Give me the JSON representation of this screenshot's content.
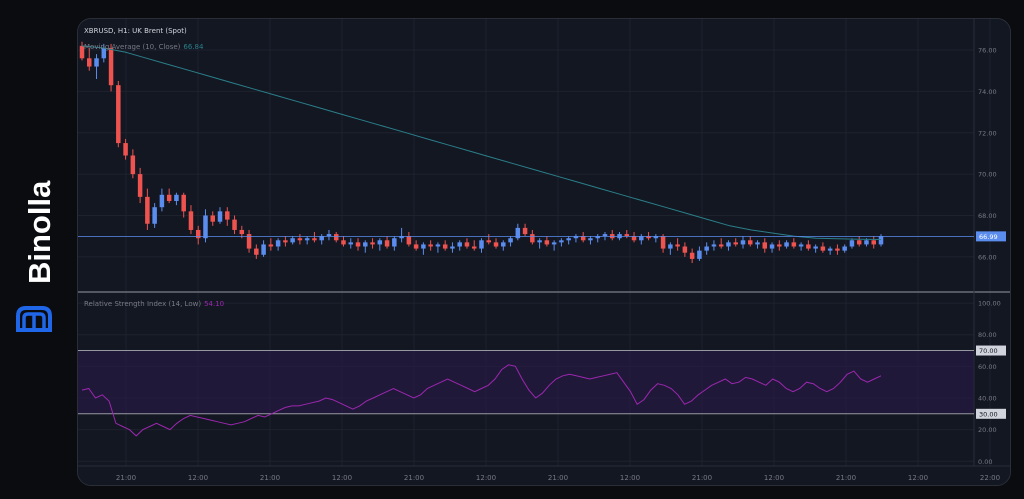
{
  "brand": {
    "name": "Binolla"
  },
  "chart": {
    "title": "XBRUSD, H1: UK Brent (Spot)",
    "ma_label": "Moving Average (10, Close)",
    "ma_value": "66.84",
    "rsi_label": "Relative Strength Index (14, Low)",
    "rsi_value": "54.10"
  },
  "colors": {
    "up": "#5b8def",
    "down": "#ef5350",
    "ma": "#2a7f8a",
    "rsi": "#9c27b0",
    "grid": "#1e222d",
    "axis_text": "#787b86"
  },
  "chart_data": [
    {
      "type": "candlestick",
      "title": "XBRUSD, H1: UK Brent (Spot)",
      "ylim": [
        64.3,
        77.5
      ],
      "y_ticks": [
        "76.00",
        "74.00",
        "72.00",
        "70.00",
        "68.00",
        "66.00"
      ],
      "x_ticks": [
        "21:00",
        "12:00",
        "21:00",
        "12:00",
        "21:00",
        "12:00",
        "21:00",
        "12:00",
        "21:00",
        "12:00",
        "21:00",
        "12:00",
        "22:00"
      ],
      "last_price": "66.99",
      "candles": [
        [
          76.2,
          76.4,
          75.5,
          75.6
        ],
        [
          75.6,
          76.1,
          75.0,
          75.2
        ],
        [
          75.2,
          75.8,
          74.6,
          75.6
        ],
        [
          75.6,
          76.3,
          75.4,
          76.1
        ],
        [
          76.1,
          76.3,
          74.0,
          74.3
        ],
        [
          74.3,
          74.5,
          71.3,
          71.5
        ],
        [
          71.5,
          71.7,
          70.7,
          70.9
        ],
        [
          70.9,
          71.2,
          69.8,
          70.0
        ],
        [
          70.0,
          70.3,
          68.6,
          68.9
        ],
        [
          68.9,
          69.3,
          67.3,
          67.6
        ],
        [
          67.6,
          68.6,
          67.4,
          68.4
        ],
        [
          68.4,
          69.3,
          68.2,
          69.0
        ],
        [
          69.0,
          69.3,
          68.6,
          68.7
        ],
        [
          68.7,
          69.1,
          68.5,
          69.0
        ],
        [
          69.0,
          69.1,
          67.9,
          68.2
        ],
        [
          68.2,
          68.5,
          67.1,
          67.3
        ],
        [
          67.3,
          67.5,
          66.6,
          66.9
        ],
        [
          66.9,
          68.3,
          66.7,
          68.0
        ],
        [
          68.0,
          68.2,
          67.5,
          67.7
        ],
        [
          67.7,
          68.4,
          67.6,
          68.2
        ],
        [
          68.2,
          68.4,
          67.5,
          67.8
        ],
        [
          67.8,
          68.0,
          67.1,
          67.3
        ],
        [
          67.3,
          67.5,
          66.9,
          67.1
        ],
        [
          67.1,
          67.3,
          66.2,
          66.4
        ],
        [
          66.4,
          66.6,
          65.9,
          66.1
        ],
        [
          66.1,
          66.8,
          66.0,
          66.6
        ],
        [
          66.6,
          66.9,
          66.3,
          66.5
        ],
        [
          66.5,
          66.9,
          66.3,
          66.8
        ],
        [
          66.8,
          67.0,
          66.5,
          66.7
        ],
        [
          66.7,
          67.0,
          66.6,
          66.9
        ],
        [
          66.9,
          67.1,
          66.6,
          66.8
        ],
        [
          66.8,
          67.0,
          66.6,
          66.9
        ],
        [
          66.9,
          67.2,
          66.7,
          66.8
        ],
        [
          66.8,
          67.1,
          66.6,
          67.0
        ],
        [
          67.0,
          67.3,
          66.8,
          67.1
        ],
        [
          67.1,
          67.2,
          66.7,
          66.8
        ],
        [
          66.8,
          67.0,
          66.5,
          66.6
        ],
        [
          66.6,
          66.9,
          66.4,
          66.7
        ],
        [
          66.7,
          66.9,
          66.3,
          66.5
        ],
        [
          66.5,
          66.8,
          66.2,
          66.7
        ],
        [
          66.7,
          66.9,
          66.4,
          66.6
        ],
        [
          66.6,
          66.9,
          66.3,
          66.8
        ],
        [
          66.8,
          67.0,
          66.4,
          66.5
        ],
        [
          66.5,
          67.0,
          66.3,
          66.9
        ],
        [
          66.9,
          67.4,
          66.7,
          67.0
        ],
        [
          67.0,
          67.2,
          66.5,
          66.6
        ],
        [
          66.6,
          66.8,
          66.3,
          66.4
        ],
        [
          66.4,
          66.7,
          66.1,
          66.6
        ],
        [
          66.6,
          66.8,
          66.3,
          66.5
        ],
        [
          66.5,
          66.7,
          66.2,
          66.6
        ],
        [
          66.6,
          66.8,
          66.3,
          66.4
        ],
        [
          66.4,
          66.7,
          66.2,
          66.5
        ],
        [
          66.5,
          66.8,
          66.3,
          66.7
        ],
        [
          66.7,
          66.9,
          66.4,
          66.5
        ],
        [
          66.5,
          66.8,
          66.3,
          66.4
        ],
        [
          66.4,
          66.9,
          66.2,
          66.8
        ],
        [
          66.8,
          67.1,
          66.6,
          66.7
        ],
        [
          66.7,
          66.9,
          66.4,
          66.5
        ],
        [
          66.5,
          66.8,
          66.3,
          66.7
        ],
        [
          66.7,
          67.0,
          66.5,
          66.9
        ],
        [
          66.9,
          67.6,
          66.8,
          67.4
        ],
        [
          67.4,
          67.6,
          67.0,
          67.1
        ],
        [
          67.1,
          67.3,
          66.6,
          66.7
        ],
        [
          66.7,
          66.9,
          66.4,
          66.8
        ],
        [
          66.8,
          67.0,
          66.5,
          66.6
        ],
        [
          66.6,
          66.8,
          66.3,
          66.7
        ],
        [
          66.7,
          66.9,
          66.5,
          66.8
        ],
        [
          66.8,
          67.0,
          66.6,
          66.9
        ],
        [
          66.9,
          67.1,
          66.7,
          67.0
        ],
        [
          67.0,
          67.2,
          66.7,
          66.8
        ],
        [
          66.8,
          67.0,
          66.6,
          66.9
        ],
        [
          66.9,
          67.1,
          66.7,
          67.0
        ],
        [
          67.0,
          67.2,
          66.8,
          67.1
        ],
        [
          67.1,
          67.3,
          66.8,
          66.9
        ],
        [
          66.9,
          67.2,
          66.8,
          67.1
        ],
        [
          67.1,
          67.3,
          66.9,
          67.0
        ],
        [
          67.0,
          67.2,
          66.7,
          66.8
        ],
        [
          66.8,
          67.1,
          66.6,
          67.0
        ],
        [
          67.0,
          67.2,
          66.8,
          66.9
        ],
        [
          66.9,
          67.1,
          66.7,
          67.0
        ],
        [
          67.0,
          67.1,
          66.2,
          66.4
        ],
        [
          66.4,
          66.7,
          66.1,
          66.6
        ],
        [
          66.6,
          66.9,
          66.3,
          66.5
        ],
        [
          66.5,
          66.7,
          66.0,
          66.2
        ],
        [
          66.2,
          66.4,
          65.7,
          65.9
        ],
        [
          65.9,
          66.5,
          65.8,
          66.3
        ],
        [
          66.3,
          66.7,
          66.1,
          66.5
        ],
        [
          66.5,
          66.8,
          66.3,
          66.6
        ],
        [
          66.6,
          66.9,
          66.4,
          66.5
        ],
        [
          66.5,
          66.8,
          66.3,
          66.7
        ],
        [
          66.7,
          66.9,
          66.5,
          66.6
        ],
        [
          66.6,
          67.0,
          66.4,
          66.8
        ],
        [
          66.8,
          67.0,
          66.5,
          66.6
        ],
        [
          66.6,
          66.8,
          66.4,
          66.7
        ],
        [
          66.7,
          66.9,
          66.2,
          66.4
        ],
        [
          66.4,
          66.7,
          66.2,
          66.6
        ],
        [
          66.6,
          66.8,
          66.3,
          66.5
        ],
        [
          66.5,
          66.8,
          66.4,
          66.7
        ],
        [
          66.7,
          66.9,
          66.4,
          66.5
        ],
        [
          66.5,
          66.7,
          66.3,
          66.6
        ],
        [
          66.6,
          66.8,
          66.3,
          66.4
        ],
        [
          66.4,
          66.6,
          66.2,
          66.5
        ],
        [
          66.5,
          66.7,
          66.2,
          66.3
        ],
        [
          66.3,
          66.5,
          66.1,
          66.4
        ],
        [
          66.4,
          66.6,
          66.1,
          66.3
        ],
        [
          66.3,
          66.6,
          66.2,
          66.5
        ],
        [
          66.5,
          66.9,
          66.4,
          66.8
        ],
        [
          66.8,
          67.0,
          66.5,
          66.6
        ],
        [
          66.6,
          66.9,
          66.5,
          66.8
        ],
        [
          66.8,
          67.0,
          66.4,
          66.6
        ],
        [
          66.6,
          67.1,
          66.5,
          66.99
        ]
      ],
      "moving_average": [
        76.2,
        76.1,
        75.9,
        75.6,
        75.3,
        75.0,
        74.7,
        74.4,
        74.1,
        73.8,
        73.5,
        73.2,
        72.9,
        72.6,
        72.3,
        72.0,
        71.7,
        71.4,
        71.1,
        70.8,
        70.5,
        70.2,
        69.9,
        69.6,
        69.3,
        69.0,
        68.7,
        68.4,
        68.1,
        67.8,
        67.5,
        67.3,
        67.15,
        67.0,
        66.9,
        66.87,
        66.85,
        66.84
      ],
      "ma_value": "66.84"
    },
    {
      "type": "line",
      "title": "Relative Strength Index (14, Low)",
      "ylim": [
        -3,
        107
      ],
      "y_ticks": [
        "100.00",
        "80.00",
        "60.00",
        "40.00",
        "20.00",
        "0.00"
      ],
      "bands": {
        "upper": "70.00",
        "lower": "30.00"
      },
      "current": "54.10",
      "values": [
        45,
        46,
        40,
        42,
        38,
        24,
        22,
        20,
        16,
        20,
        22,
        24,
        22,
        20,
        24,
        27,
        29,
        28,
        27,
        26,
        25,
        24,
        23,
        24,
        25,
        27,
        29,
        28,
        30,
        32,
        34,
        35,
        35,
        36,
        37,
        38,
        40,
        39,
        37,
        35,
        33,
        35,
        38,
        40,
        42,
        44,
        46,
        44,
        42,
        40,
        42,
        46,
        48,
        50,
        52,
        50,
        48,
        46,
        44,
        46,
        48,
        52,
        58,
        61,
        60,
        52,
        45,
        40,
        43,
        48,
        52,
        54,
        55,
        54,
        53,
        52,
        53,
        54,
        55,
        56,
        50,
        44,
        36,
        39,
        45,
        49,
        48,
        46,
        42,
        36,
        38,
        42,
        45,
        48,
        50,
        52,
        49,
        50,
        53,
        52,
        50,
        48,
        52,
        50,
        46,
        44,
        46,
        50,
        49,
        46,
        44,
        46,
        50,
        55,
        57,
        52,
        50,
        52,
        54
      ]
    }
  ]
}
